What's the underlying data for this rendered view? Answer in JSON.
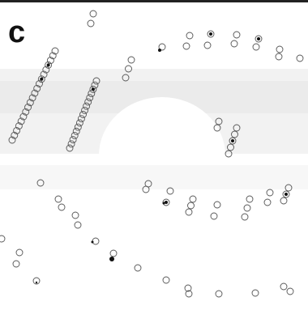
{
  "panel": {
    "label": "c"
  }
}
